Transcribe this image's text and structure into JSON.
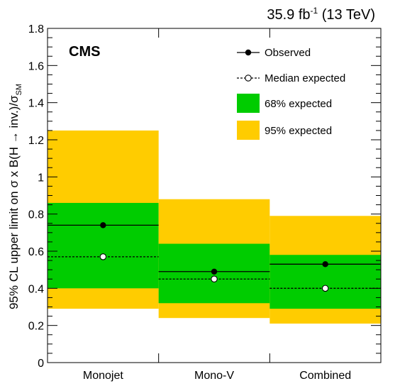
{
  "header": {
    "lumi_prefix": "35.9 fb",
    "lumi_sup": "-1",
    "energy": " (13 TeV)"
  },
  "experiment_label": "CMS",
  "ylabel": {
    "main": "95% CL upper limit on σ x B(H → inv.)/σ",
    "sub": "SM"
  },
  "legend": {
    "observed": "Observed",
    "median": "Median expected",
    "band68": "68% expected",
    "band95": "95% expected"
  },
  "colors": {
    "band68": "#00cc00",
    "band95": "#ffcc00",
    "line": "#000000"
  },
  "chart_data": {
    "type": "bar",
    "categories": [
      "Monojet",
      "Mono-V",
      "Combined"
    ],
    "ylim": [
      0,
      1.8
    ],
    "yticks": [
      "0",
      "0.2",
      "0.4",
      "0.6",
      "0.8",
      "1",
      "1.2",
      "1.4",
      "1.6",
      "1.8"
    ],
    "observed": [
      0.74,
      0.49,
      0.53
    ],
    "median_expected": [
      0.57,
      0.45,
      0.4
    ],
    "band68": [
      [
        0.4,
        0.86
      ],
      [
        0.32,
        0.64
      ],
      [
        0.29,
        0.58
      ]
    ],
    "band95": [
      [
        0.29,
        1.25
      ],
      [
        0.24,
        0.88
      ],
      [
        0.21,
        0.79
      ]
    ],
    "legend_position": "top-right"
  }
}
